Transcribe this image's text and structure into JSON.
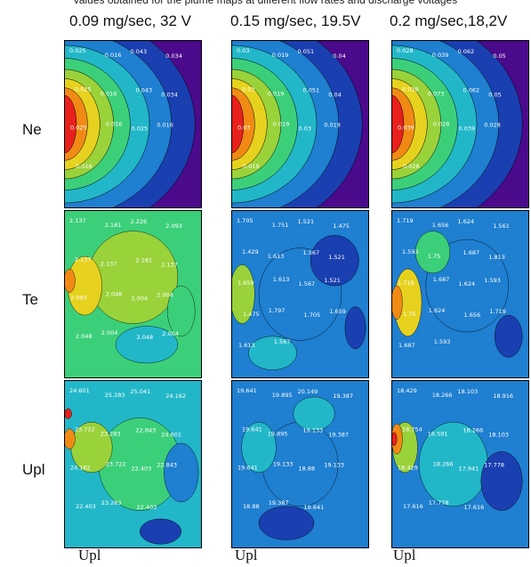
{
  "caption_top": "values obtained for the plume maps at different flow rates and discharge voltages",
  "columns": [
    {
      "label": "0.09 mg/sec, 32 V"
    },
    {
      "label": "0.15 mg/sec, 19.5V"
    },
    {
      "label": "0.2 mg/sec,18,2V"
    }
  ],
  "rows": [
    {
      "label": "Ne"
    },
    {
      "label": "Te"
    },
    {
      "label": "Upl"
    }
  ],
  "bottom_labels": [
    "Upl",
    "Upl",
    "Upl"
  ],
  "colors": {
    "background": "#4b0a8c",
    "scale": [
      "#4b0a8c",
      "#1a3fb0",
      "#1f7fd0",
      "#22b7c8",
      "#3ccf7a",
      "#9ad23a",
      "#e6d21e",
      "#f08a14",
      "#e8201c"
    ]
  },
  "chart_data": [
    {
      "type": "heatmap",
      "row": "Ne",
      "column": "0.09 mg/sec, 32 V",
      "contour_labels": [
        "0.025",
        "0.016",
        "0.043",
        "0.034",
        "0.025",
        "0.016",
        "0.043",
        "0.034",
        "0.025",
        "0.016",
        "0.025",
        "0.016",
        "0.016"
      ]
    },
    {
      "type": "heatmap",
      "row": "Ne",
      "column": "0.15 mg/sec, 19.5V",
      "contour_labels": [
        "0.03",
        "0.019",
        "0.051",
        "0.04",
        "0.03",
        "0.019",
        "0.051",
        "0.04",
        "0.03",
        "0.019",
        "0.03",
        "0.019",
        "0.019"
      ]
    },
    {
      "type": "heatmap",
      "row": "Ne",
      "column": "0.2 mg/sec,18,2V",
      "contour_labels": [
        "0.028",
        "0.039",
        "0.062",
        "0.05",
        "0.028",
        "0.073",
        "0.062",
        "0.05",
        "0.039",
        "0.028",
        "0.039",
        "0.028",
        "0.028"
      ]
    },
    {
      "type": "heatmap",
      "row": "Te",
      "column": "0.09 mg/sec, 32 V",
      "contour_labels": [
        "2.137",
        "2.181",
        "2.226",
        "2.093",
        "2.137",
        "2.137",
        "2.181",
        "2.137",
        "2.093",
        "2.048",
        "2.004",
        "2.004",
        "2.048",
        "2.004",
        "2.048",
        "2.004"
      ]
    },
    {
      "type": "heatmap",
      "row": "Te",
      "column": "0.15 mg/sec, 19.5V",
      "contour_labels": [
        "1.705",
        "1.751",
        "1.521",
        "1.475",
        "1.429",
        "1.613",
        "1.567",
        "1.521",
        "1.659",
        "1.613",
        "1.567",
        "1.521",
        "1.475",
        "1.797",
        "1.705",
        "1.659",
        "1.613",
        "1.567"
      ]
    },
    {
      "type": "heatmap",
      "row": "Te",
      "column": "0.2 mg/sec,18,2V",
      "contour_labels": [
        "1.719",
        "1.656",
        "1.624",
        "1.561",
        "1.593",
        "1.75",
        "1.687",
        "1.813",
        "1.719",
        "1.687",
        "1.624",
        "1.593",
        "1.75",
        "1.624",
        "1.656",
        "1.719",
        "1.687",
        "1.593"
      ]
    },
    {
      "type": "heatmap",
      "row": "Upl",
      "column": "0.09 mg/sec, 32 V",
      "contour_labels": [
        "24.601",
        "25.283",
        "25.041",
        "24.162",
        "23.722",
        "23.283",
        "22.843",
        "24.601",
        "24.162",
        "23.722",
        "22.403",
        "22.843",
        "22.403",
        "23.283",
        "22.403"
      ]
    },
    {
      "type": "heatmap",
      "row": "Upl",
      "column": "0.15 mg/sec, 19.5V",
      "contour_labels": [
        "19.641",
        "19.895",
        "20.149",
        "19.387",
        "19.641",
        "19.895",
        "19.133",
        "19.387",
        "19.641",
        "19.133",
        "18.88",
        "19.133",
        "18.88",
        "19.387",
        "19.641"
      ]
    },
    {
      "type": "heatmap",
      "row": "Upl",
      "column": "0.2 mg/sec,18,2V",
      "contour_labels": [
        "18.429",
        "18.266",
        "18.103",
        "18.916",
        "18.754",
        "18.591",
        "18.266",
        "18.103",
        "18.429",
        "18.266",
        "17.941",
        "17.778",
        "17.616",
        "17.778",
        "17.616"
      ]
    }
  ]
}
